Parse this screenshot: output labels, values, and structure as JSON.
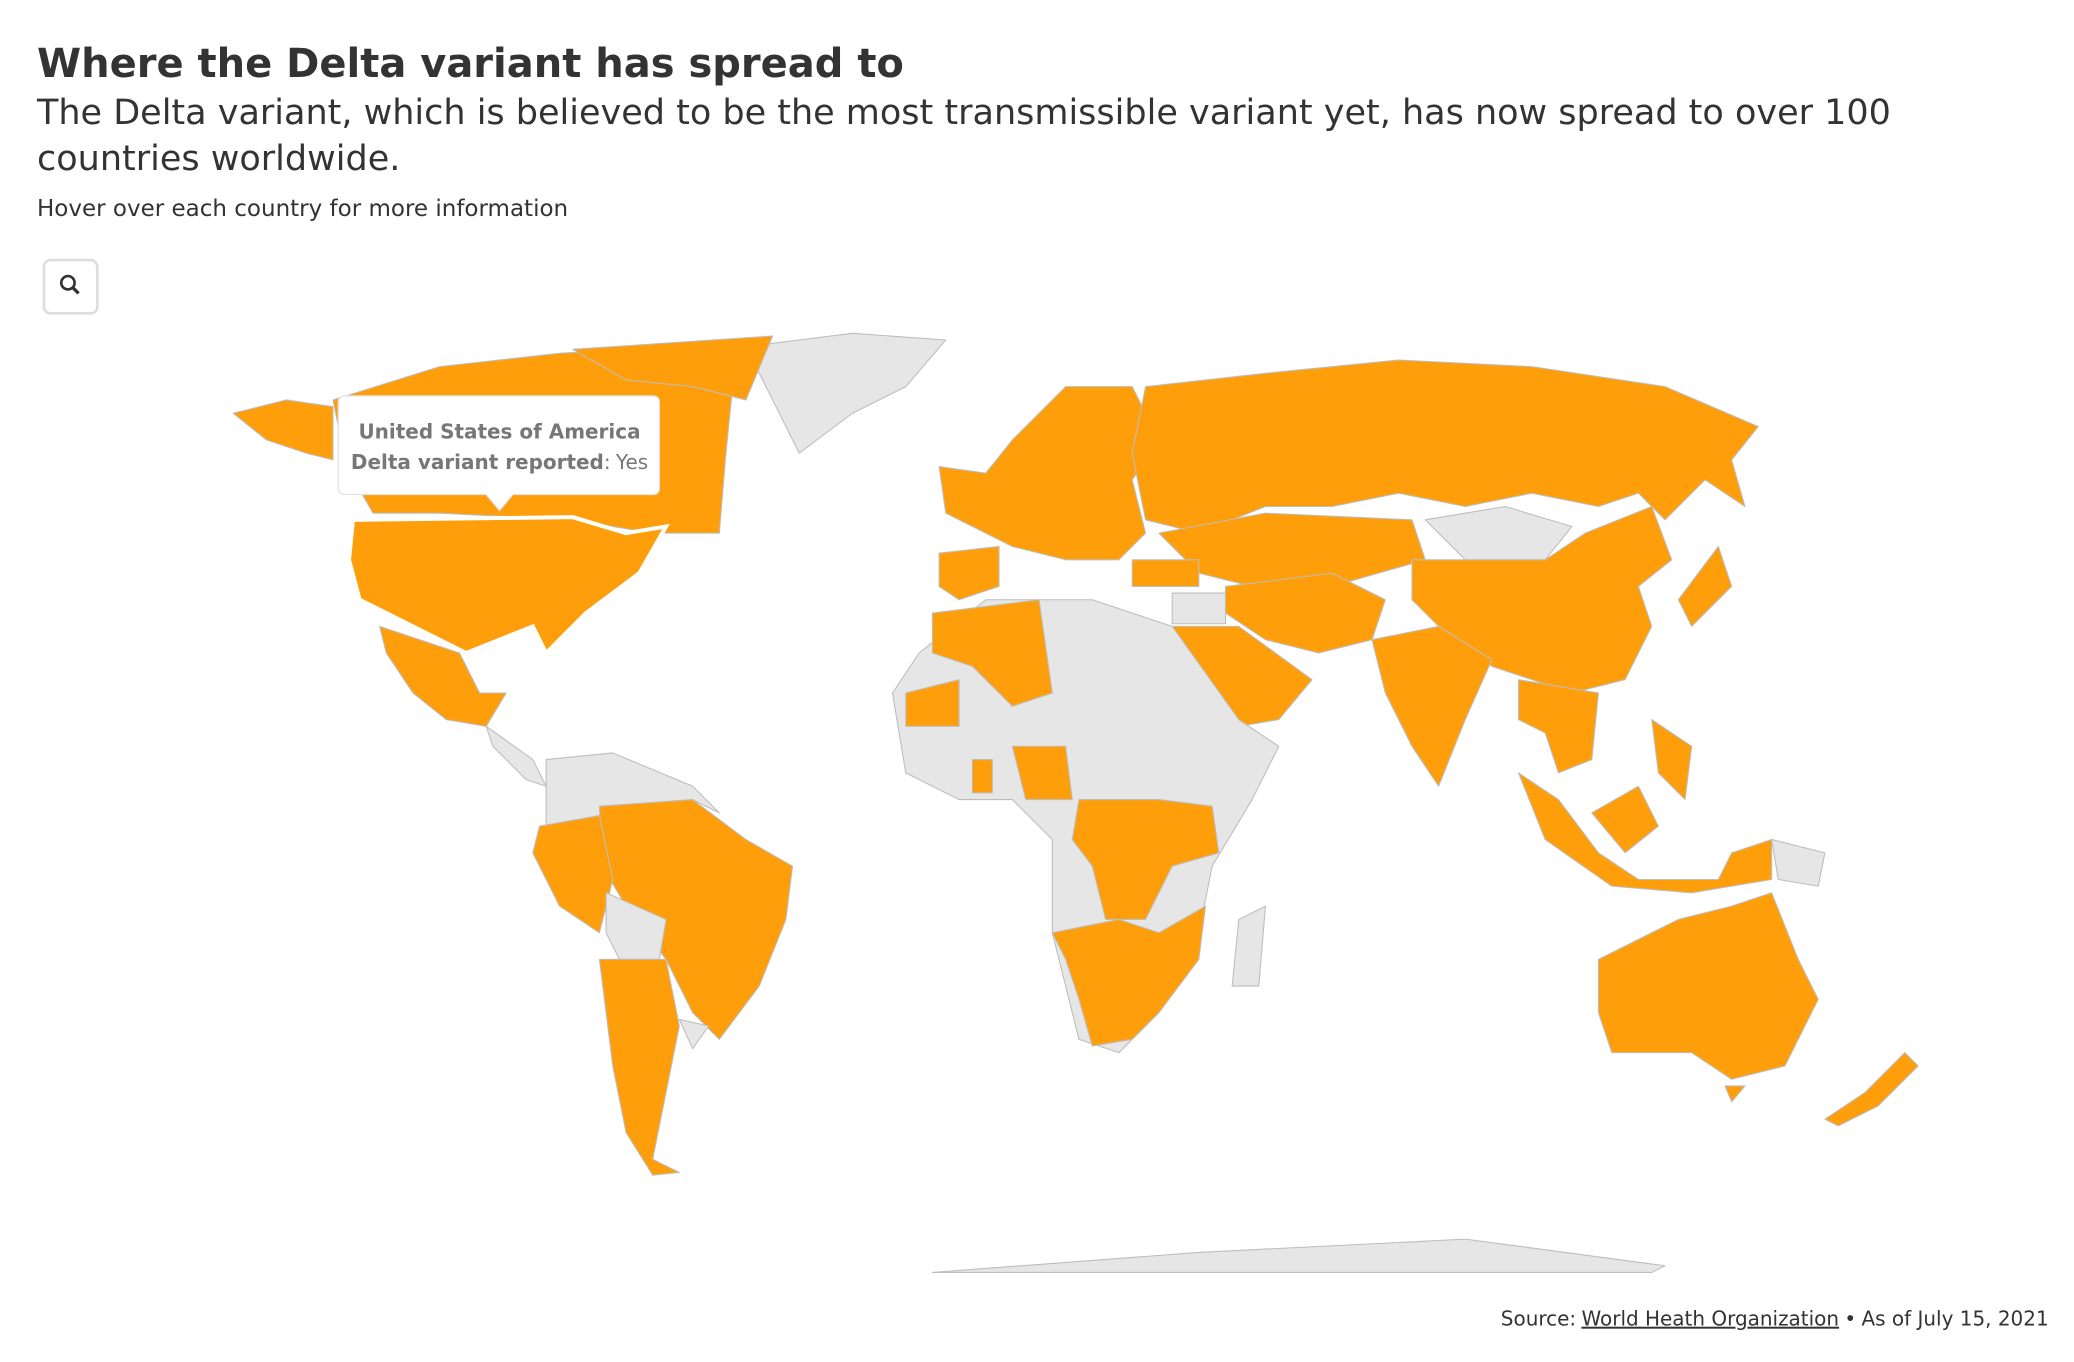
{
  "title": "Where the Delta variant has spread to",
  "subtitle": "The Delta variant, which is believed to be the most transmissible variant yet, has now spread to over 100 countries worldwide.",
  "instruction": "Hover over each country for more information",
  "tooltip": {
    "country": "United States of America",
    "field": "Delta variant reported",
    "separator": ":",
    "value": "Yes"
  },
  "source": {
    "label": "Source:",
    "link": "World Heath Organization",
    "bullet": "•",
    "note": "As of July 15, 2021"
  },
  "map": {
    "colors": {
      "reported": "#ff9e0b",
      "not_reported": "#e6e6e6",
      "border": "#bdbdbd"
    }
  }
}
